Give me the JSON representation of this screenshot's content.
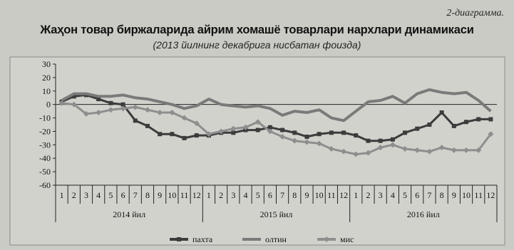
{
  "header": {
    "caption": "2-диаграмма.",
    "title": "Жаҳон товар биржаларида айрим хомашё товарлари нархлари динамикаси",
    "subtitle": "(2013 йилнинг декабрига нисбатан фоизда)"
  },
  "chart_data": {
    "type": "line",
    "title": "Жаҳон товар биржаларида айрим хомашё товарлари нархлари динамикаси",
    "subtitle": "(2013 йилнинг декабрига нисбатан фоизда)",
    "ylim": [
      -60,
      30
    ],
    "yticks": [
      30,
      20,
      10,
      0,
      -10,
      -20,
      -30,
      -40,
      -50,
      -60
    ],
    "categories": [
      "1",
      "2",
      "3",
      "4",
      "5",
      "6",
      "7",
      "8",
      "9",
      "10",
      "11",
      "12",
      "1",
      "2",
      "3",
      "4",
      "5",
      "6",
      "7",
      "8",
      "9",
      "10",
      "11",
      "12",
      "1",
      "2",
      "3",
      "4",
      "5",
      "6",
      "7",
      "8",
      "9",
      "10",
      "11",
      "12"
    ],
    "year_groups": [
      "2014 йил",
      "2015 йил",
      "2016 йил"
    ],
    "grid": false,
    "legend_position": "bottom",
    "series": [
      {
        "name": "пахта",
        "marker": "square",
        "color": "#3c3c3c",
        "values": [
          2,
          6,
          7,
          4,
          1,
          0,
          -12,
          -16,
          -22,
          -22,
          -25,
          -23,
          -23,
          -21,
          -21,
          -19,
          -19,
          -17,
          -19,
          -21,
          -24,
          -22,
          -21,
          -21,
          -23,
          -27,
          -27,
          -26,
          -21,
          -18,
          -15,
          -6,
          -16,
          -13,
          -11,
          -11
        ]
      },
      {
        "name": "олтин",
        "marker": "none",
        "color": "#7a7a7a",
        "values": [
          3,
          8,
          8,
          6,
          6,
          7,
          5,
          4,
          2,
          0,
          -3,
          -1,
          4,
          0,
          -1,
          -2,
          -1,
          -3,
          -8,
          -5,
          -6,
          -4,
          -10,
          -12,
          -5,
          2,
          3,
          6,
          1,
          8,
          11,
          9,
          8,
          9,
          3,
          -5
        ]
      },
      {
        "name": "мис",
        "marker": "diamond",
        "color": "#8e8e8e",
        "values": [
          1,
          0,
          -7,
          -6,
          -4,
          -3,
          -2,
          -4,
          -6,
          -6,
          -10,
          -14,
          -22,
          -20,
          -18,
          -17,
          -13,
          -20,
          -24,
          -27,
          -28,
          -29,
          -33,
          -35,
          -37,
          -36,
          -32,
          -30,
          -33,
          -34,
          -35,
          -32,
          -34,
          -34,
          -34,
          -22
        ]
      }
    ]
  }
}
